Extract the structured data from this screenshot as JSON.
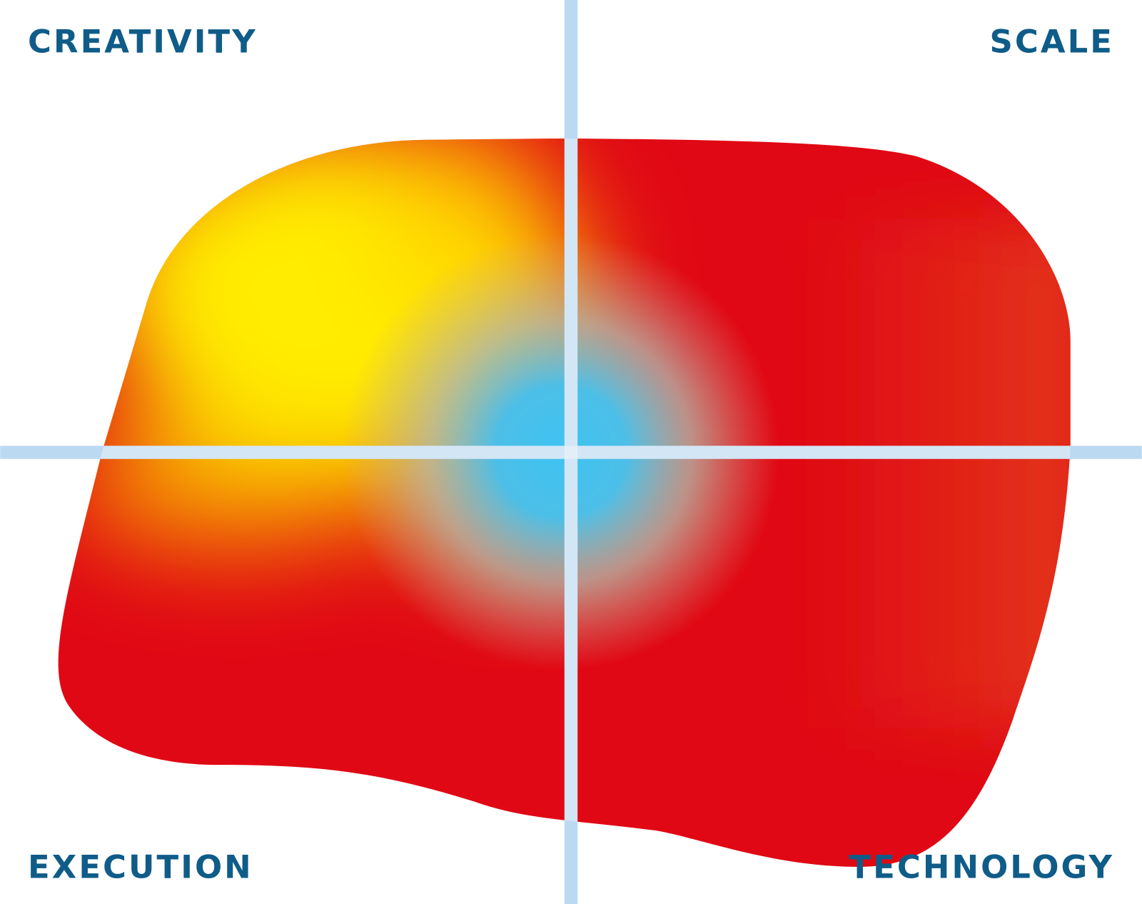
{
  "labels": {
    "top_left": "CREATIVITY",
    "top_right": "SCALE",
    "bottom_left": "EXECUTION",
    "bottom_right": "TECHNOLOGY"
  }
}
